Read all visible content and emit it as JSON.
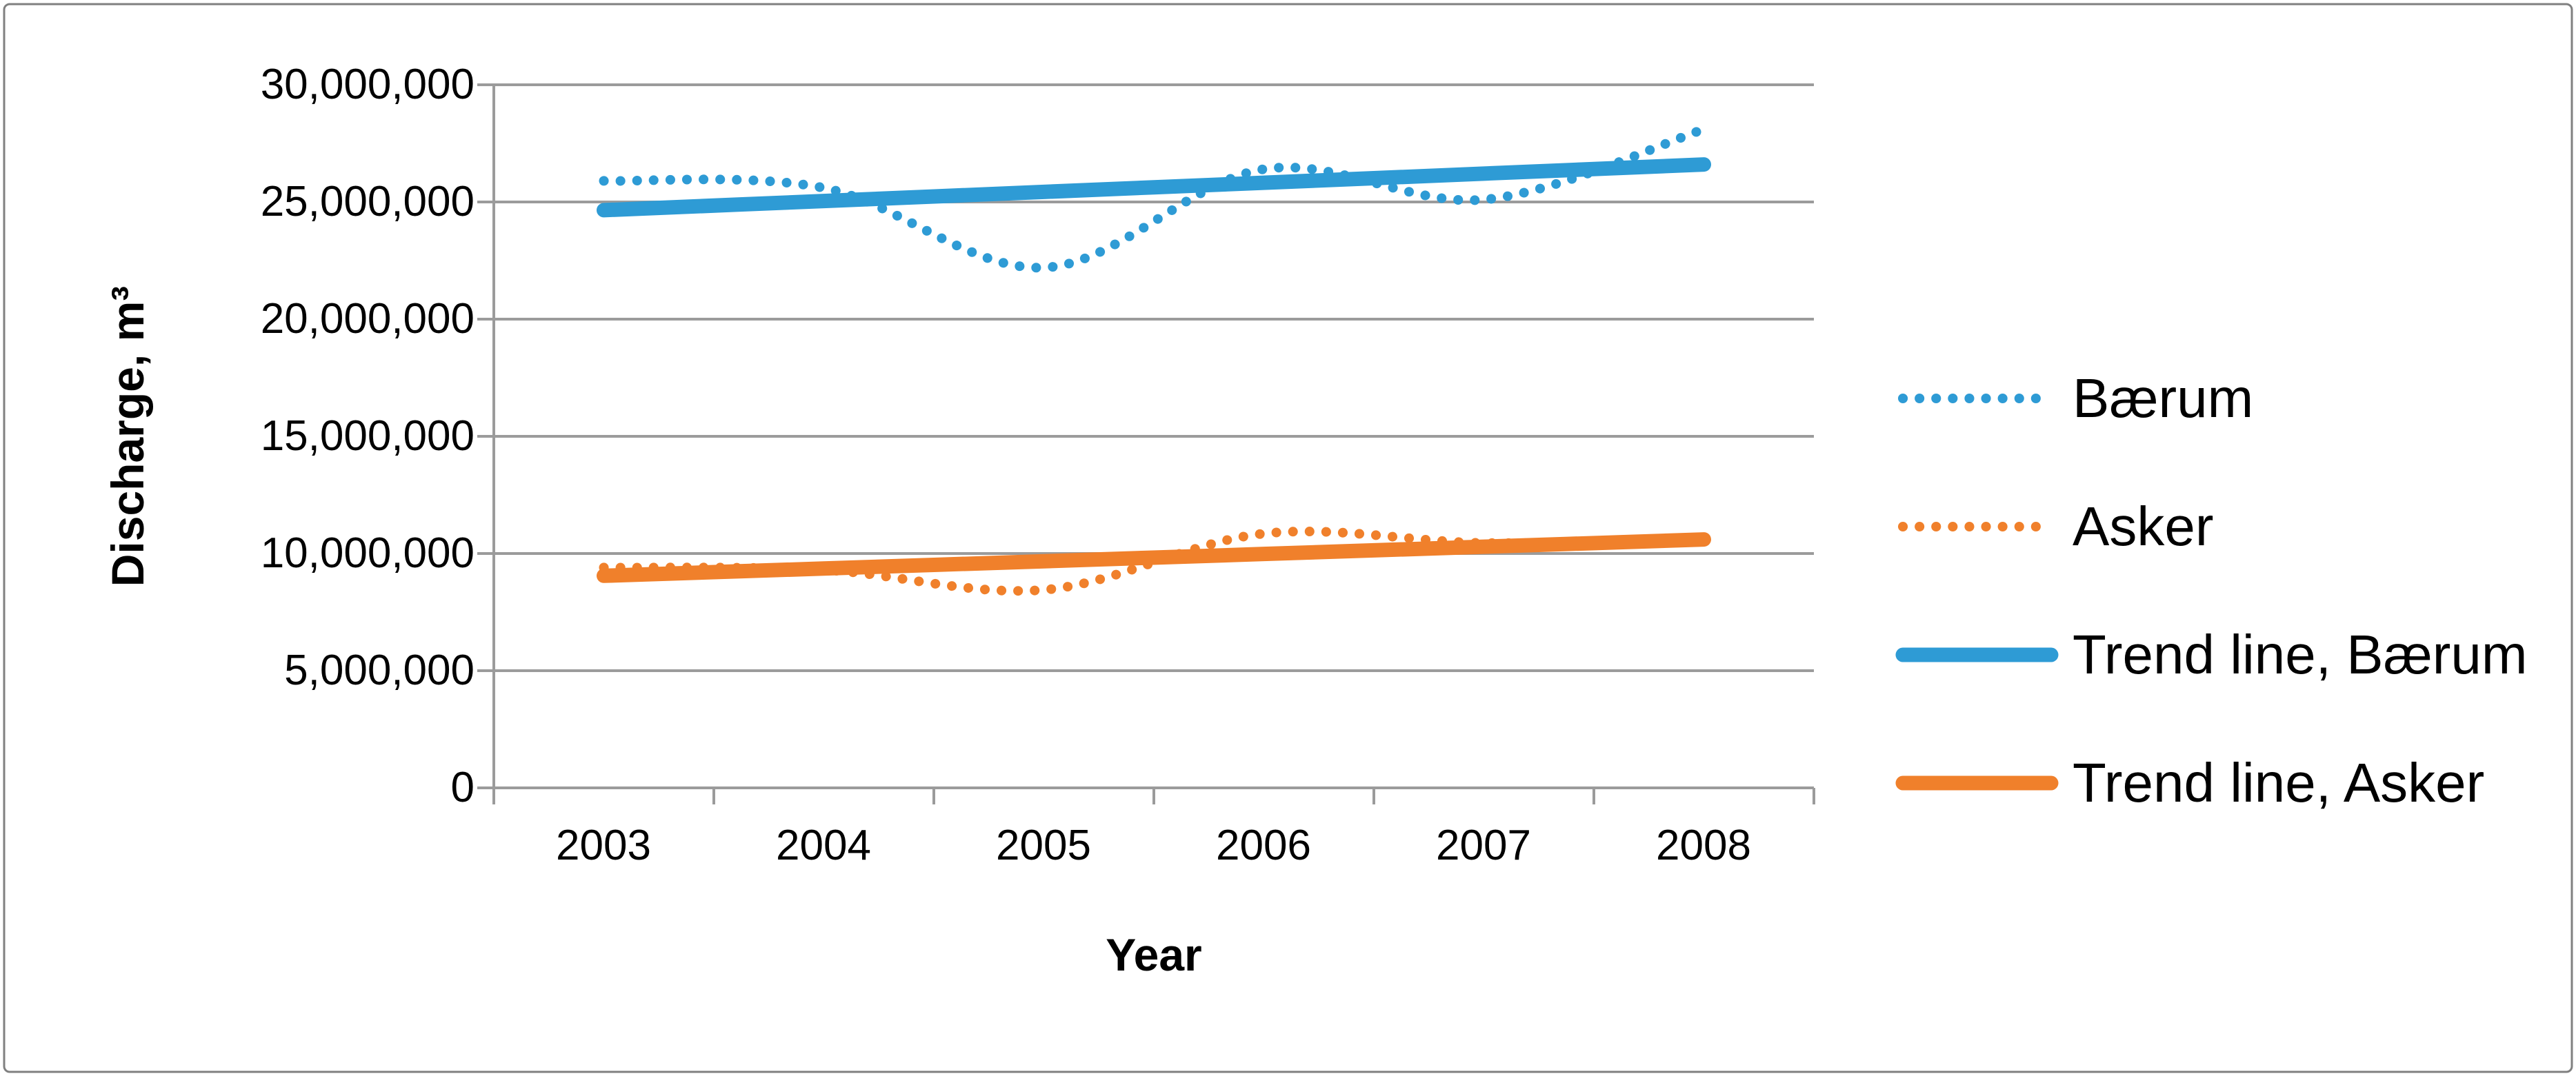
{
  "chart_data": {
    "type": "line",
    "title": "",
    "xlabel": "Year",
    "ylabel": "Discharge, m³",
    "categories": [
      "2003",
      "2004",
      "2005",
      "2006",
      "2007",
      "2008"
    ],
    "y_ticks": [
      "30,000,000",
      "25,000,000",
      "20,000,000",
      "15,000,000",
      "10,000,000",
      "5,000,000",
      "0"
    ],
    "ylim": [
      0,
      30000000
    ],
    "y_gridline_step": 5000000,
    "grid": true,
    "legend_position": "right",
    "colors": {
      "baerum": "#2E9BD5",
      "asker": "#F0802B",
      "gridline": "#9B9B9B",
      "axis": "#9B9B9B",
      "border": "#808080",
      "text": "#000000"
    },
    "series": [
      {
        "name": "Bærum",
        "style": "dotted",
        "color_key": "baerum",
        "values": [
          25900000,
          25600000,
          22200000,
          26400000,
          25100000,
          28100000
        ]
      },
      {
        "name": "Asker",
        "style": "dotted",
        "color_key": "asker",
        "values": [
          9400000,
          9300000,
          8450000,
          10850000,
          10450000,
          10600000
        ]
      },
      {
        "name": "Trend line, Bærum",
        "style": "solid",
        "color_key": "baerum",
        "values": [
          24650000,
          25040000,
          25430000,
          25820000,
          26210000,
          26600000
        ]
      },
      {
        "name": "Trend line, Asker",
        "style": "solid",
        "color_key": "asker",
        "values": [
          9050000,
          9360000,
          9670000,
          9980000,
          10290000,
          10600000
        ]
      }
    ]
  }
}
